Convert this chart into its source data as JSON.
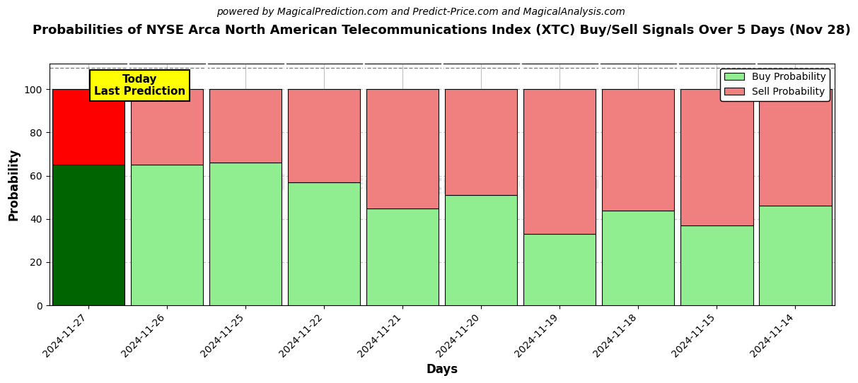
{
  "title": "Probabilities of NYSE Arca North American Telecommunications Index (XTC) Buy/Sell Signals Over 5 Days (Nov 28)",
  "subtitle": "powered by MagicalPrediction.com and Predict-Price.com and MagicalAnalysis.com",
  "xlabel": "Days",
  "ylabel": "Probability",
  "categories": [
    "2024-11-27",
    "2024-11-26",
    "2024-11-25",
    "2024-11-22",
    "2024-11-21",
    "2024-11-20",
    "2024-11-19",
    "2024-11-18",
    "2024-11-15",
    "2024-11-14"
  ],
  "buy_values": [
    65,
    65,
    66,
    57,
    45,
    51,
    33,
    44,
    37,
    46
  ],
  "sell_values": [
    35,
    35,
    34,
    43,
    55,
    49,
    67,
    56,
    63,
    54
  ],
  "today_bar_buy_color": "#006400",
  "today_bar_sell_color": "#FF0000",
  "regular_bar_buy_color": "#90EE90",
  "regular_bar_sell_color": "#F08080",
  "bar_edge_color": "#000000",
  "ylim": [
    0,
    112
  ],
  "yticks": [
    0,
    20,
    40,
    60,
    80,
    100
  ],
  "dashed_line_y": 110,
  "today_annotation": "Today\nLast Prediction",
  "today_annotation_bg": "#FFFF00",
  "legend_buy_label": "Buy Probability",
  "legend_sell_label": "Sell Probability",
  "legend_buy_color": "#90EE90",
  "legend_sell_color": "#F08080",
  "grid_color": "#C0C0C0",
  "background_color": "#FFFFFF",
  "title_fontsize": 13,
  "subtitle_fontsize": 10,
  "axis_label_fontsize": 12,
  "tick_label_fontsize": 10,
  "bar_width": 0.92,
  "watermark1": "MagicalAnalysis.com",
  "watermark2": "MagicalPrediction.com",
  "watermark3": "n"
}
